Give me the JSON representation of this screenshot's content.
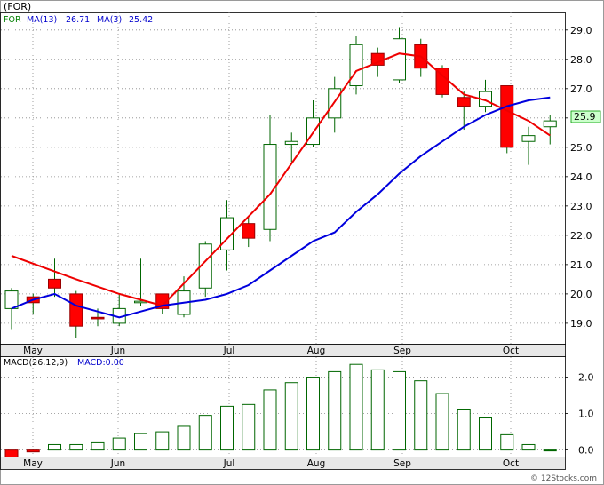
{
  "chart_data": [
    {
      "type": "candlestick",
      "symbol": "(FOR)",
      "legend": [
        {
          "label": "FOR",
          "color": "#008000"
        },
        {
          "label": "MA(13)",
          "value": "26.71",
          "color": "#0000cc"
        },
        {
          "label": "MA(3)",
          "value": "25.42",
          "color": "#0000cc"
        }
      ],
      "last_price": "25.9",
      "ylim": [
        18.3,
        29.6
      ],
      "y_ticks": [
        "19.0",
        "20.0",
        "21.0",
        "22.0",
        "23.0",
        "24.0",
        "25.0",
        "26.0",
        "27.0",
        "28.0",
        "29.0"
      ],
      "x_ticks": [
        "May",
        "Jun",
        "Jul",
        "Aug",
        "Sep",
        "Oct"
      ],
      "candles": [
        {
          "o": 19.5,
          "c": 20.1,
          "h": 20.2,
          "l": 18.8
        },
        {
          "o": 19.9,
          "c": 19.7,
          "h": 20.0,
          "l": 19.3
        },
        {
          "o": 20.5,
          "c": 20.2,
          "h": 21.2,
          "l": 19.9
        },
        {
          "o": 20.0,
          "c": 18.9,
          "h": 20.1,
          "l": 18.5
        },
        {
          "o": 19.2,
          "c": 19.15,
          "h": 19.5,
          "l": 18.9
        },
        {
          "o": 19.0,
          "c": 19.5,
          "h": 20.0,
          "l": 18.9
        },
        {
          "o": 19.7,
          "c": 19.75,
          "h": 21.2,
          "l": 19.6
        },
        {
          "o": 20.0,
          "c": 19.5,
          "h": 20.0,
          "l": 19.3
        },
        {
          "o": 19.3,
          "c": 20.1,
          "h": 20.6,
          "l": 19.2
        },
        {
          "o": 20.2,
          "c": 21.7,
          "h": 21.8,
          "l": 19.9
        },
        {
          "o": 21.5,
          "c": 22.6,
          "h": 23.2,
          "l": 20.8
        },
        {
          "o": 22.4,
          "c": 21.9,
          "h": 22.6,
          "l": 21.6
        },
        {
          "o": 22.2,
          "c": 25.1,
          "h": 26.1,
          "l": 21.8
        },
        {
          "o": 25.1,
          "c": 25.2,
          "h": 25.5,
          "l": 24.5
        },
        {
          "o": 25.1,
          "c": 26.0,
          "h": 26.6,
          "l": 25.0
        },
        {
          "o": 26.0,
          "c": 27.0,
          "h": 27.4,
          "l": 25.5
        },
        {
          "o": 27.1,
          "c": 28.5,
          "h": 28.8,
          "l": 26.8
        },
        {
          "o": 28.2,
          "c": 27.8,
          "h": 28.4,
          "l": 27.4
        },
        {
          "o": 27.3,
          "c": 28.7,
          "h": 29.1,
          "l": 27.2
        },
        {
          "o": 28.5,
          "c": 27.7,
          "h": 28.7,
          "l": 27.4
        },
        {
          "o": 27.7,
          "c": 26.8,
          "h": 27.8,
          "l": 26.7
        },
        {
          "o": 26.7,
          "c": 26.4,
          "h": 26.9,
          "l": 25.6
        },
        {
          "o": 26.4,
          "c": 26.9,
          "h": 27.3,
          "l": 26.2
        },
        {
          "o": 27.1,
          "c": 25.0,
          "h": 27.1,
          "l": 24.8
        },
        {
          "o": 25.2,
          "c": 25.4,
          "h": 25.7,
          "l": 24.4
        },
        {
          "o": 25.7,
          "c": 25.9,
          "h": 26.1,
          "l": 25.1
        }
      ],
      "ma3": [
        21.3,
        null,
        null,
        20.5,
        null,
        20.0,
        null,
        19.6,
        null,
        null,
        null,
        null,
        23.4,
        null,
        null,
        null,
        27.6,
        null,
        28.2,
        28.1,
        null,
        26.8,
        26.6,
        null,
        25.9,
        25.4
      ],
      "ma13": [
        19.5,
        19.8,
        20.0,
        19.6,
        19.4,
        19.2,
        19.4,
        19.6,
        19.7,
        19.8,
        20.0,
        20.3,
        20.8,
        21.3,
        21.8,
        22.1,
        22.8,
        23.4,
        24.1,
        24.7,
        25.2,
        25.7,
        26.1,
        26.4,
        26.6,
        26.7
      ]
    },
    {
      "type": "bar",
      "title": "MACD(26,12,9)",
      "legend": [
        {
          "label": "MACD:0.00",
          "color": "#0000cc"
        }
      ],
      "ylim": [
        -0.18,
        2.55
      ],
      "y_ticks": [
        "0.0",
        "1.0",
        "2.0"
      ],
      "x_ticks": [
        "May",
        "Jun",
        "Jul",
        "Aug",
        "Sep",
        "Oct"
      ],
      "values": [
        -0.2,
        -0.05,
        0.15,
        0.15,
        0.2,
        0.33,
        0.45,
        0.5,
        0.65,
        0.95,
        1.2,
        1.25,
        1.65,
        1.85,
        2.0,
        2.15,
        2.35,
        2.2,
        2.15,
        1.9,
        1.55,
        1.1,
        0.88,
        0.42,
        0.15,
        0.0
      ]
    }
  ],
  "copyright": "© 12Stocks.com"
}
